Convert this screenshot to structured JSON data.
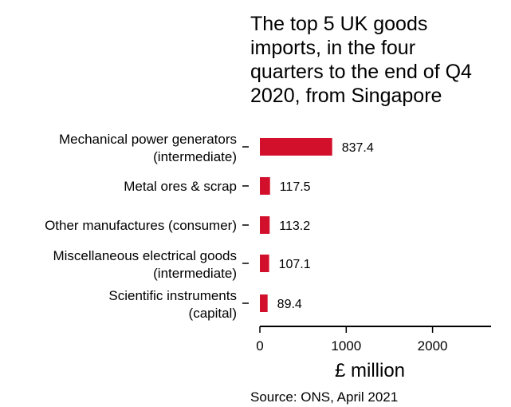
{
  "chart_data": {
    "type": "bar",
    "orientation": "horizontal",
    "title_lines": [
      "The top 5 UK goods",
      "imports, in the four",
      "quarters to the end of Q4",
      "2020, from Singapore"
    ],
    "categories": [
      [
        "Mechanical power generators",
        "(intermediate)"
      ],
      [
        "Metal ores & scrap"
      ],
      [
        "Other manufactures (consumer)"
      ],
      [
        "Miscellaneous electrical goods",
        "(intermediate)"
      ],
      [
        "Scientific instruments",
        "(capital)"
      ]
    ],
    "values": [
      837.4,
      117.5,
      113.2,
      107.1,
      89.4
    ],
    "value_labels": [
      "837.4",
      "117.5",
      "113.2",
      "107.1",
      "89.4"
    ],
    "xlabel": "£ million",
    "xlim": [
      0,
      2700
    ],
    "xticks": [
      0,
      1000,
      2000
    ],
    "xtick_labels": [
      "0",
      "1000",
      "2000"
    ],
    "bar_color": "#d2102c",
    "grid": false
  },
  "source": "Source: ONS, April 2021"
}
